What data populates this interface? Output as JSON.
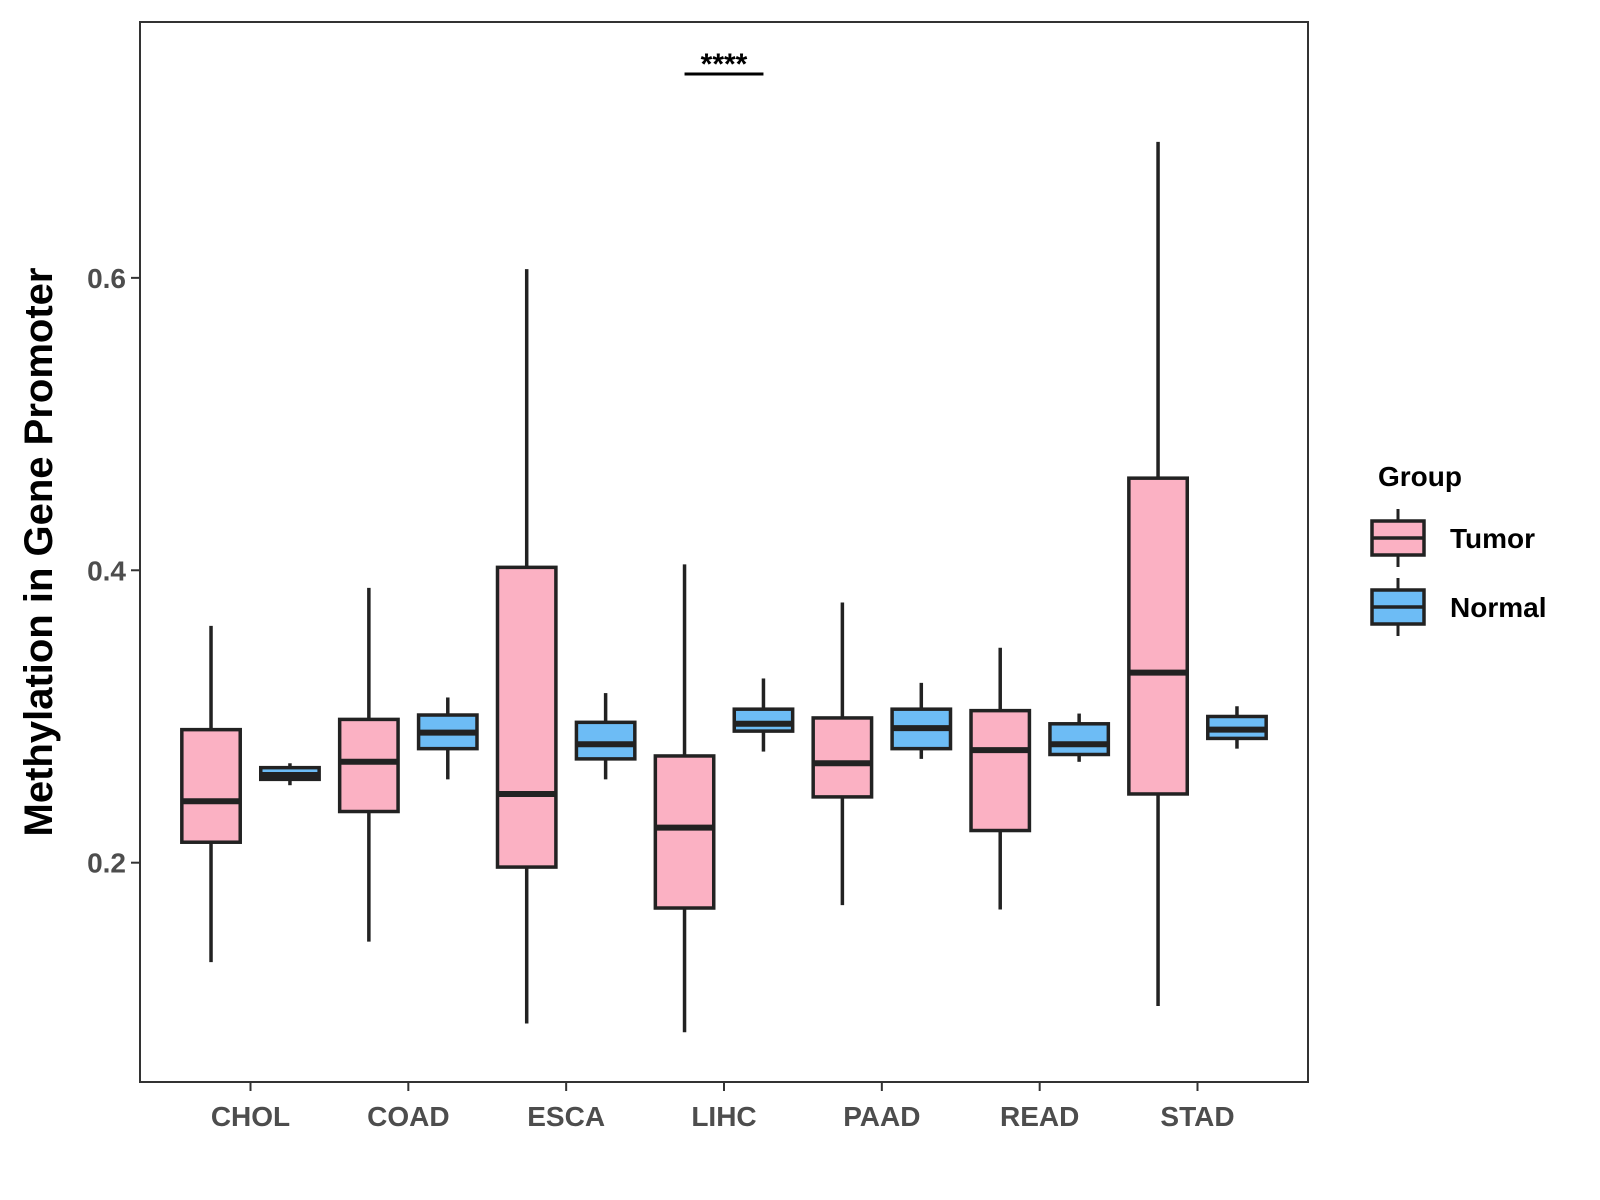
{
  "chart_data": {
    "type": "boxplot",
    "title": "",
    "xlabel": "",
    "ylabel": "Methylation in Gene Promoter",
    "ylim": [
      0.05,
      0.775
    ],
    "yticks": [
      0.2,
      0.4,
      0.6
    ],
    "ytick_labels": [
      "0.2",
      "0.4",
      "0.6"
    ],
    "categories": [
      "CHOL",
      "COAD",
      "ESCA",
      "LIHC",
      "PAAD",
      "READ",
      "STAD"
    ],
    "legend": {
      "title": "Group",
      "position": "right",
      "entries": [
        {
          "name": "Tumor",
          "color": "#FBB1C3"
        },
        {
          "name": "Normal",
          "color": "#6DBCF5"
        }
      ]
    },
    "series": [
      {
        "name": "Tumor",
        "color": "#FBB1C3",
        "boxes": [
          {
            "min": 0.132,
            "q1": 0.214,
            "median": 0.242,
            "q3": 0.291,
            "max": 0.362
          },
          {
            "min": 0.146,
            "q1": 0.235,
            "median": 0.269,
            "q3": 0.298,
            "max": 0.388
          },
          {
            "min": 0.09,
            "q1": 0.197,
            "median": 0.247,
            "q3": 0.402,
            "max": 0.606
          },
          {
            "min": 0.084,
            "q1": 0.169,
            "median": 0.224,
            "q3": 0.273,
            "max": 0.404
          },
          {
            "min": 0.171,
            "q1": 0.245,
            "median": 0.268,
            "q3": 0.299,
            "max": 0.378
          },
          {
            "min": 0.168,
            "q1": 0.222,
            "median": 0.277,
            "q3": 0.304,
            "max": 0.347
          },
          {
            "min": 0.102,
            "q1": 0.247,
            "median": 0.33,
            "q3": 0.463,
            "max": 0.693
          }
        ]
      },
      {
        "name": "Normal",
        "color": "#6DBCF5",
        "boxes": [
          {
            "min": 0.253,
            "q1": 0.257,
            "median": 0.26,
            "q3": 0.265,
            "max": 0.268
          },
          {
            "min": 0.257,
            "q1": 0.278,
            "median": 0.289,
            "q3": 0.301,
            "max": 0.313
          },
          {
            "min": 0.257,
            "q1": 0.271,
            "median": 0.281,
            "q3": 0.296,
            "max": 0.316
          },
          {
            "min": 0.276,
            "q1": 0.29,
            "median": 0.295,
            "q3": 0.305,
            "max": 0.326
          },
          {
            "min": 0.271,
            "q1": 0.278,
            "median": 0.292,
            "q3": 0.305,
            "max": 0.323
          },
          {
            "min": 0.269,
            "q1": 0.274,
            "median": 0.281,
            "q3": 0.295,
            "max": 0.302
          },
          {
            "min": 0.278,
            "q1": 0.285,
            "median": 0.291,
            "q3": 0.3,
            "max": 0.307
          }
        ]
      }
    ],
    "annotations": [
      {
        "text": "****",
        "category": "LIHC"
      }
    ]
  }
}
